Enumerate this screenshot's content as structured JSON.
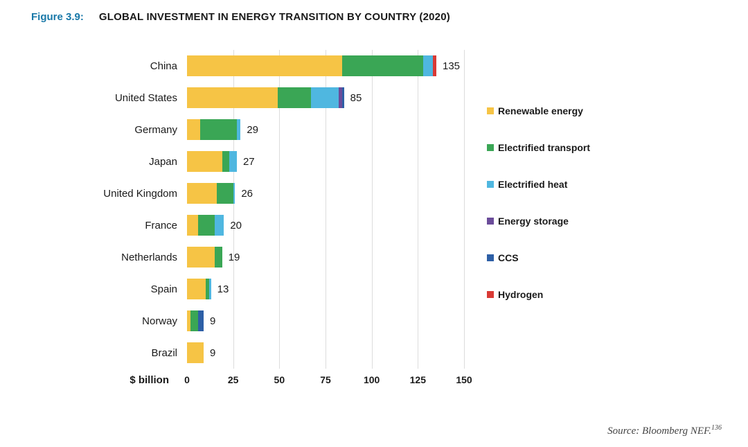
{
  "chart_data": {
    "type": "bar",
    "orientation": "horizontal",
    "figure_label": "Figure 3.9:",
    "title": "GLOBAL INVESTMENT IN ENERGY TRANSITION BY COUNTRY (2020)",
    "xlabel": "$ billion",
    "xlim": [
      0,
      150
    ],
    "xticks": [
      0,
      25,
      50,
      75,
      100,
      125,
      150
    ],
    "grid": true,
    "legend_position": "right",
    "categories": [
      "China",
      "United States",
      "Germany",
      "Japan",
      "United Kingdom",
      "France",
      "Netherlands",
      "Spain",
      "Norway",
      "Brazil"
    ],
    "totals": [
      135,
      85,
      29,
      27,
      26,
      20,
      19,
      13,
      9,
      9
    ],
    "series": [
      {
        "name": "Renewable energy",
        "color": "#F6C445",
        "values": [
          84,
          49,
          7,
          19,
          16,
          6,
          15,
          10,
          2,
          9
        ]
      },
      {
        "name": "Electrified transport",
        "color": "#3AA655",
        "values": [
          44,
          18,
          20,
          4,
          9,
          9,
          4,
          2,
          4,
          0
        ]
      },
      {
        "name": "Electrified heat",
        "color": "#4FB7E0",
        "values": [
          5,
          15,
          2,
          4,
          1,
          5,
          0,
          1,
          0,
          0
        ]
      },
      {
        "name": "Energy storage",
        "color": "#6B4C9A",
        "values": [
          0,
          2,
          0,
          0,
          0,
          0,
          0,
          0,
          0,
          0
        ]
      },
      {
        "name": "CCS",
        "color": "#2D5FA6",
        "values": [
          0,
          1,
          0,
          0,
          0,
          0,
          0,
          0,
          3,
          0
        ]
      },
      {
        "name": "Hydrogen",
        "color": "#D93A35",
        "values": [
          2,
          0,
          0,
          0,
          0,
          0,
          0,
          0,
          0,
          0
        ]
      }
    ]
  },
  "source": {
    "text": "Source: Bloomberg NEF.",
    "footnote": "136"
  }
}
